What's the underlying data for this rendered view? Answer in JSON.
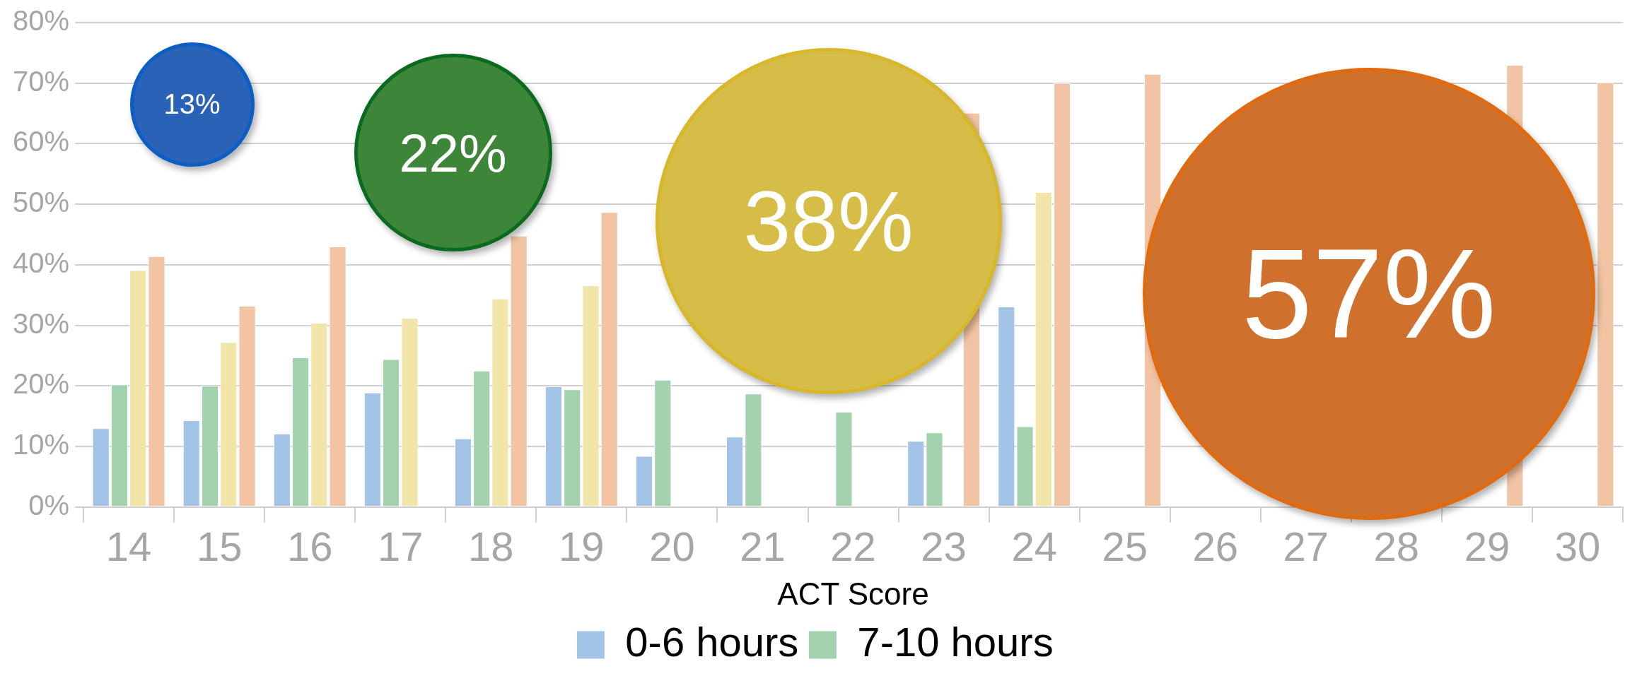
{
  "chart_data": {
    "type": "bar",
    "xlabel": "ACT Score",
    "categories": [
      "14",
      "15",
      "16",
      "17",
      "18",
      "19",
      "20",
      "21",
      "22",
      "23",
      "24",
      "25",
      "26",
      "27",
      "28",
      "29",
      "30"
    ],
    "series": [
      {
        "name": "0-6 hours",
        "color": "#a3c4e6",
        "values": [
          13,
          14.3,
          12.1,
          18.9,
          11.3,
          19.9,
          8.4,
          11.6,
          null,
          10.9,
          33.1,
          null,
          null,
          null,
          null,
          null,
          null
        ]
      },
      {
        "name": "7-10 hours",
        "color": "#a2d2ae",
        "values": [
          20.2,
          20,
          24.7,
          24.4,
          22.5,
          19.4,
          21,
          18.7,
          15.7,
          12.3,
          13.3,
          null,
          null,
          null,
          null,
          null,
          null
        ]
      },
      {
        "color": "#f1e5a9",
        "values": [
          39.1,
          27.2,
          30.4,
          31.2,
          34.4,
          36.6,
          null,
          null,
          null,
          null,
          52,
          null,
          null,
          null,
          null,
          null,
          null
        ]
      },
      {
        "color": "#f2c4a3",
        "values": [
          41.4,
          33.2,
          43,
          null,
          44.8,
          48.7,
          null,
          null,
          null,
          65.1,
          70,
          71.5,
          null,
          null,
          null,
          73,
          70.1
        ]
      }
    ],
    "ylim": [
      0,
      80
    ],
    "yticks": [
      {
        "value": 0,
        "label": "0%"
      },
      {
        "value": 10,
        "label": "10%"
      },
      {
        "value": 20,
        "label": "20%"
      },
      {
        "value": 30,
        "label": "30%"
      },
      {
        "value": 40,
        "label": "40%"
      },
      {
        "value": 50,
        "label": "50%"
      },
      {
        "value": 60,
        "label": "60%"
      },
      {
        "value": 70,
        "label": "70%"
      },
      {
        "value": 80,
        "label": "80%"
      }
    ],
    "grid": "y",
    "legend": "bottom",
    "annotations": [
      "13%",
      "22%",
      "38%",
      "57%"
    ]
  }
}
